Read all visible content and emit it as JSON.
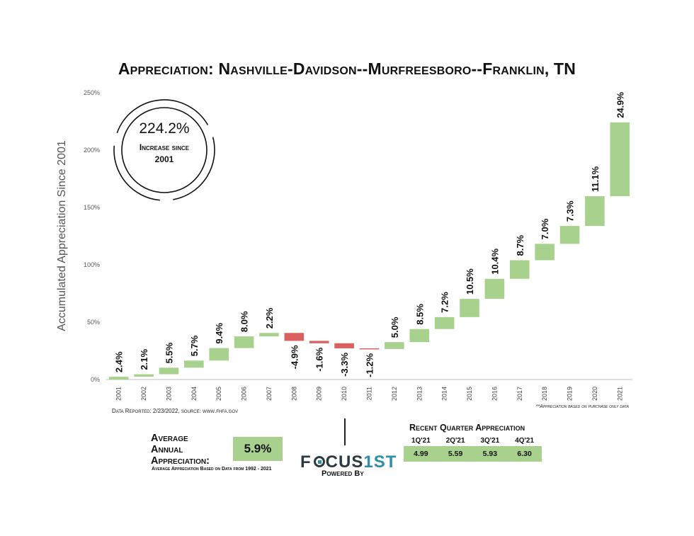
{
  "title": "Appreciation: Nashville-Davidson--Murfreesboro--Franklin, TN",
  "chart_data": {
    "type": "bar",
    "subtype": "waterfall",
    "ylabel": "Accumulated Appreciation Since 2001",
    "xlabel": "",
    "ylim": [
      0,
      250
    ],
    "yticks": [
      "0%",
      "50%",
      "100%",
      "150%",
      "200%",
      "250%"
    ],
    "yticks_values": [
      0,
      50,
      100,
      150,
      200,
      250
    ],
    "grid": false,
    "categories": [
      "2001",
      "2002",
      "2003",
      "2004",
      "2005",
      "2006",
      "2007",
      "2008",
      "2009",
      "2010",
      "2011",
      "2012",
      "2013",
      "2014",
      "2015",
      "2016",
      "2017",
      "2018",
      "2019",
      "2020",
      "2021"
    ],
    "values": [
      2.4,
      2.1,
      5.5,
      5.7,
      9.4,
      8.0,
      2.2,
      -4.9,
      -1.6,
      -3.3,
      -1.2,
      5.0,
      8.5,
      7.2,
      10.5,
      10.4,
      8.7,
      7.0,
      7.3,
      11.1,
      24.9
    ],
    "labels": [
      "2.4%",
      "2.1%",
      "5.5%",
      "5.7%",
      "9.4%",
      "8.0%",
      "2.2%",
      "-4.9%",
      "-1.6%",
      "-3.3%",
      "-1.2%",
      "5.0%",
      "8.5%",
      "7.2%",
      "10.5%",
      "10.4%",
      "8.7%",
      "7.0%",
      "7.3%",
      "11.1%",
      "24.9%"
    ],
    "bar_tops": [
      2.4,
      4.6,
      10.3,
      16.5,
      27.4,
      37.6,
      40.6,
      40.6,
      33.7,
      31.6,
      27.2,
      32.6,
      44.0,
      54.4,
      70.3,
      87.8,
      104.0,
      118.3,
      133.9,
      159.8,
      224.2
    ],
    "bar_bottoms": [
      0,
      2.4,
      4.6,
      10.3,
      16.5,
      27.4,
      37.6,
      33.7,
      31.6,
      27.2,
      26.6,
      26.6,
      32.6,
      44.0,
      54.4,
      70.3,
      87.8,
      104.0,
      118.3,
      133.9,
      159.8
    ],
    "colors": {
      "positive": "#a9d18e",
      "negative": "#d9605e"
    }
  },
  "summary": {
    "total_increase": "224.2%",
    "total_caption_line1": "Increase since",
    "total_caption_line2": "2001"
  },
  "source_note": "Data Reported: 2/23/2022, source: www.fhfa.gov",
  "footnote": "**Appreciation based on purchase only data",
  "average": {
    "label_line1": "Average",
    "label_line2": "Annual",
    "label_line3": "Appreciation:",
    "value": "5.9%",
    "note": "Average Appreciation Based on Data from 1992 - 2021"
  },
  "logo": {
    "brand_left": "F",
    "brand_mid": "CUS",
    "brand_accent": "1ST",
    "tagline": "Powered By"
  },
  "recent_quarters": {
    "title": "Recent Quarter Appreciation",
    "headers": [
      "1Q'21",
      "2Q'21",
      "3Q'21",
      "4Q'21"
    ],
    "values": [
      "4.99",
      "5.59",
      "5.93",
      "6.30"
    ]
  }
}
